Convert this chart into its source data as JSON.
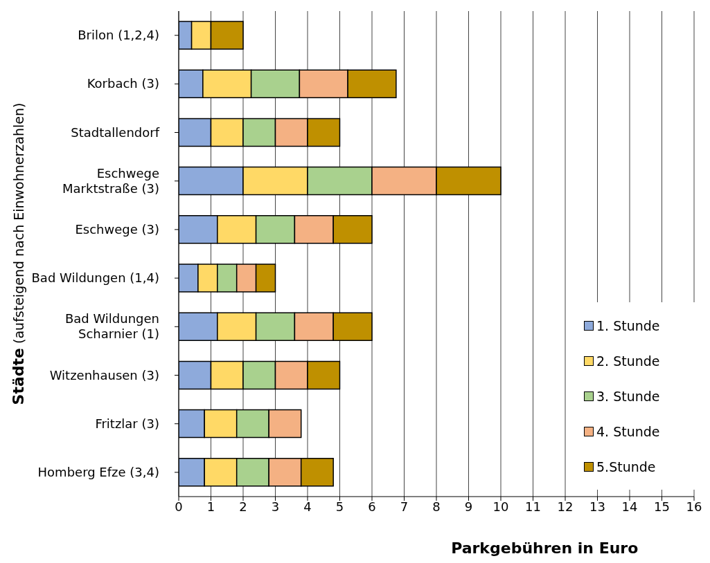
{
  "chart_data": {
    "type": "bar",
    "orientation": "horizontal",
    "stacked": true,
    "xlabel": "Parkgebühren in Euro",
    "ylabel": "Städte (aufsteigend nach Einwohnerzahlen)",
    "categories": [
      "Brilon (1,2,4)",
      "Korbach (3)",
      "Stadtallendorf",
      "Eschwege Marktstraße (3)",
      "Eschwege (3)",
      "Bad Wildungen (1,4)",
      "Bad Wildungen Scharnier (1)",
      "Witzenhausen (3)",
      "Fritzlar (3)",
      "Homberg Efze (3,4)"
    ],
    "series": [
      {
        "name": "1. Stunde",
        "color": "#8eaadb",
        "values": [
          0.4,
          0.75,
          1,
          2,
          1.2,
          0.6,
          1.2,
          1,
          0.8,
          0.8
        ]
      },
      {
        "name": "2. Stunde",
        "color": "#ffd966",
        "values": [
          0.6,
          1.5,
          1,
          2,
          1.2,
          0.6,
          1.2,
          1,
          1,
          1
        ]
      },
      {
        "name": "3. Stunde",
        "color": "#a9d18e",
        "values": [
          null,
          1.5,
          1,
          2,
          1.2,
          0.6,
          1.2,
          1,
          1,
          1
        ]
      },
      {
        "name": "4. Stunde",
        "color": "#f4b183",
        "values": [
          null,
          1.5,
          1,
          2,
          1.2,
          0.6,
          1.2,
          1,
          1,
          1
        ]
      },
      {
        "name": "5.Stunde",
        "color": "#bf9000",
        "values": [
          1,
          1.5,
          1,
          2,
          1.2,
          0.6,
          1.2,
          1,
          null,
          1
        ]
      }
    ],
    "xlim": [
      0,
      16
    ],
    "xticks": [
      0,
      1,
      2,
      3,
      4,
      5,
      6,
      7,
      8,
      9,
      10,
      11,
      12,
      13,
      14,
      15,
      16
    ],
    "grid": "x",
    "legend": "bottom right"
  }
}
